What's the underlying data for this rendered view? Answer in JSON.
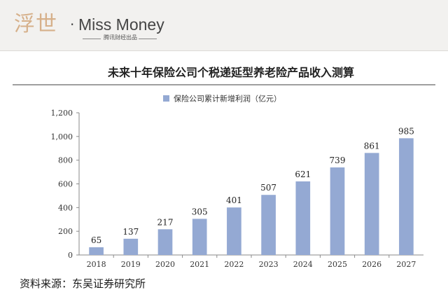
{
  "header": {
    "logo_mark": "浮世",
    "logo_separator": "·",
    "brand": "Miss Money",
    "subtitle": "腾讯财经出品"
  },
  "chart_data": {
    "type": "bar",
    "title": "未来十年保险公司个税递延型养老险产品收入测算",
    "categories": [
      "2018",
      "2019",
      "2020",
      "2021",
      "2022",
      "2023",
      "2024",
      "2025",
      "2026",
      "2027"
    ],
    "series": [
      {
        "name": "保险公司累计新增利润（亿元）",
        "values": [
          65,
          137,
          217,
          305,
          401,
          507,
          621,
          739,
          861,
          985
        ]
      }
    ],
    "data_labels": [
      "65",
      "137",
      "217",
      "305",
      "401",
      "507",
      "621",
      "739",
      "861",
      "985"
    ],
    "y_ticks": [
      "0",
      "200",
      "400",
      "600",
      "800",
      "1,000",
      "1,200"
    ],
    "ylim": [
      0,
      1200
    ],
    "grid": false,
    "legend_position": "top-center",
    "bar_color": "#94a9d3"
  },
  "source": "资料来源：东吴证券研究所"
}
